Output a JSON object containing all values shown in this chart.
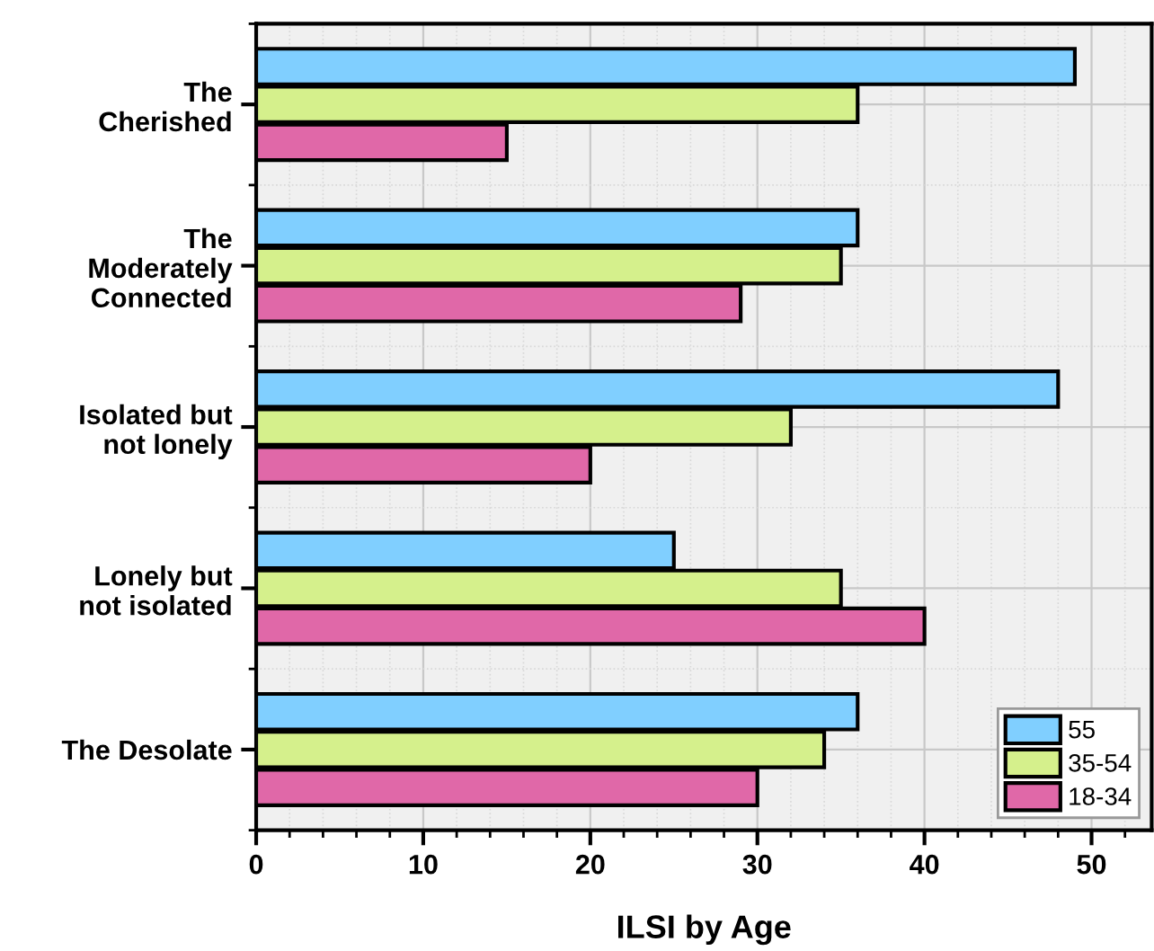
{
  "chart_data": {
    "type": "bar",
    "orientation": "horizontal",
    "xlabel": "ILSI by Age",
    "categories": [
      "The\nCherished",
      "The\nModerately\nConnected",
      "Isolated but\nnot lonely",
      "Lonely but\nnot isolated",
      "The Desolate"
    ],
    "series": [
      {
        "name": "55",
        "color": "#80cfff",
        "values": [
          49,
          36,
          48,
          25,
          36
        ]
      },
      {
        "name": "35-54",
        "color": "#d5f08c",
        "values": [
          36,
          35,
          32,
          35,
          34
        ]
      },
      {
        "name": "18-34",
        "color": "#e068a8",
        "values": [
          15,
          29,
          20,
          40,
          30
        ]
      }
    ],
    "xlim": [
      0,
      53.6
    ],
    "xticks": [
      0,
      10,
      20,
      30,
      40,
      50
    ],
    "grid": true,
    "legend": "bottom right"
  }
}
